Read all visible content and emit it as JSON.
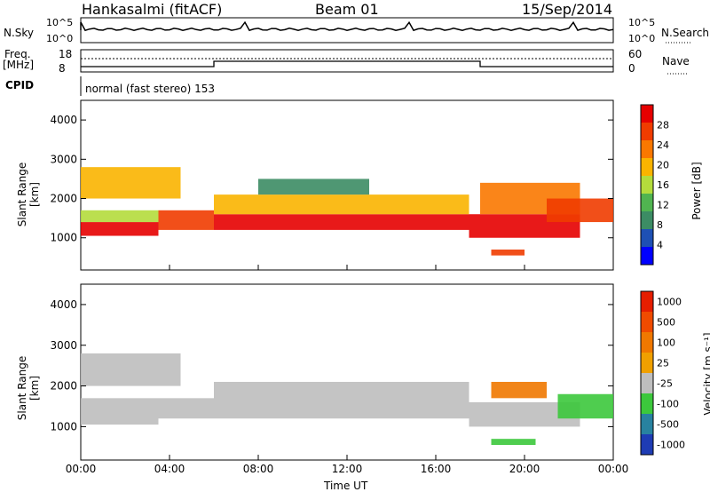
{
  "header": {
    "station": "Hankasalmi (fitACF)",
    "beam": "Beam 01",
    "date": "15/Sep/2014"
  },
  "strip": {
    "nsky_label": "N.Sky",
    "nsky_ticks": [
      "10^5",
      "10^0"
    ],
    "nsearch_label": "N.Search",
    "nsearch_ticks": [
      "10^5",
      "10^0"
    ],
    "freq_label": "Freq.",
    "freq_unit": "[MHz]",
    "freq_ticks": [
      "18",
      "8"
    ],
    "nave_label": "Nave",
    "nave_ticks": [
      "60",
      "0"
    ],
    "cpid_label": "CPID",
    "cpid_text": "normal (fast stereo) 153"
  },
  "colors": {
    "power": [
      "#0000ff",
      "#1e50b4",
      "#3c8c64",
      "#50b450",
      "#b4dc3c",
      "#fab400",
      "#fa7800",
      "#f03c00",
      "#e60000"
    ],
    "velocity": [
      "#1e3cb4",
      "#2882a0",
      "#3cc83c",
      "#bebebe",
      "#f0a000",
      "#f07800",
      "#f04b00",
      "#e61e00"
    ],
    "ground_scatter": "#bebebe"
  },
  "chart_data": [
    {
      "type": "heatmap",
      "name_text": "Power",
      "ylabel": "Slant Range [km]",
      "colorbar_label": "Power [dB]",
      "colorbar_ticks": [
        "28",
        "24",
        "20",
        "16",
        "12",
        "8",
        "4"
      ],
      "ylim": [
        180,
        4500
      ],
      "yticks": [
        "1000",
        "2000",
        "3000",
        "4000"
      ],
      "xlim": [
        0,
        24
      ],
      "bands": [
        {
          "x": [
            0.0,
            3.5
          ],
          "y": [
            1050,
            1400
          ],
          "level": 8
        },
        {
          "x": [
            0.0,
            3.5
          ],
          "y": [
            1400,
            1700
          ],
          "level": 4
        },
        {
          "x": [
            0.0,
            4.5
          ],
          "y": [
            2000,
            2800
          ],
          "level": 5
        },
        {
          "x": [
            3.5,
            6.0
          ],
          "y": [
            1200,
            1700
          ],
          "level": 7
        },
        {
          "x": [
            6.0,
            17.5
          ],
          "y": [
            1200,
            1600
          ],
          "level": 8
        },
        {
          "x": [
            6.0,
            17.5
          ],
          "y": [
            1600,
            2100
          ],
          "level": 5
        },
        {
          "x": [
            8.0,
            13.0
          ],
          "y": [
            2100,
            2500
          ],
          "level": 2
        },
        {
          "x": [
            17.5,
            22.5
          ],
          "y": [
            1000,
            1600
          ],
          "level": 8
        },
        {
          "x": [
            18.0,
            22.5
          ],
          "y": [
            1600,
            2400
          ],
          "level": 6
        },
        {
          "x": [
            21.0,
            24.0
          ],
          "y": [
            1400,
            2000
          ],
          "level": 7
        },
        {
          "x": [
            18.5,
            20.0
          ],
          "y": [
            550,
            700
          ],
          "level": 7
        }
      ]
    },
    {
      "type": "heatmap",
      "name_text": "Velocity",
      "ylabel": "Slant Range [km]",
      "colorbar_label": "Velocity [m s⁻¹]",
      "colorbar_ticks": [
        "1000",
        "500",
        "100",
        "25",
        "-25",
        "-100",
        "-500",
        "-1000"
      ],
      "ylim": [
        180,
        4500
      ],
      "yticks": [
        "1000",
        "2000",
        "3000",
        "4000"
      ],
      "xlim": [
        0,
        24
      ],
      "xticks": [
        "00:00",
        "04:00",
        "08:00",
        "12:00",
        "16:00",
        "20:00",
        "00:00"
      ],
      "xlabel": "Time UT",
      "bands": [
        {
          "x": [
            0.0,
            3.5
          ],
          "y": [
            1050,
            1700
          ],
          "level": 3
        },
        {
          "x": [
            0.0,
            4.5
          ],
          "y": [
            2000,
            2800
          ],
          "level": 3
        },
        {
          "x": [
            3.5,
            6.0
          ],
          "y": [
            1200,
            1700
          ],
          "level": 3
        },
        {
          "x": [
            6.0,
            17.5
          ],
          "y": [
            1200,
            2100
          ],
          "level": 3
        },
        {
          "x": [
            17.5,
            22.5
          ],
          "y": [
            1000,
            1600
          ],
          "level": 3
        },
        {
          "x": [
            18.5,
            21.0
          ],
          "y": [
            1700,
            2100
          ],
          "level": 5
        },
        {
          "x": [
            21.5,
            24.0
          ],
          "y": [
            1200,
            1800
          ],
          "level": 2
        },
        {
          "x": [
            18.5,
            20.5
          ],
          "y": [
            550,
            700
          ],
          "level": 2
        }
      ]
    }
  ]
}
